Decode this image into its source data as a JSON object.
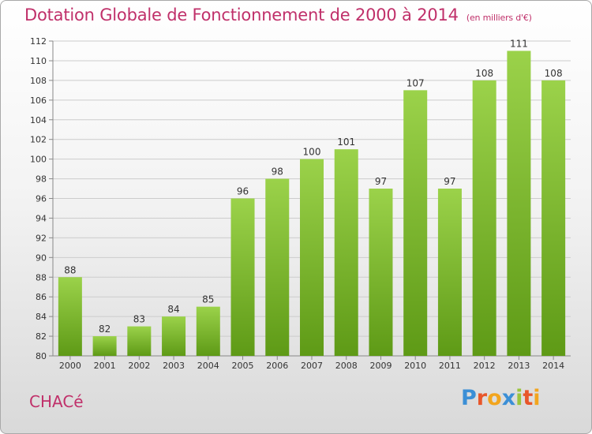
{
  "header": {
    "title": "Dotation Globale de Fonctionnement de 2000 à 2014",
    "subtitle": "(en milliers d'€)"
  },
  "footer": {
    "commune": "CHACé",
    "logo_text": "Proxiti",
    "logo_colors": [
      "#3b8fd6",
      "#e8562a",
      "#f2a51e",
      "#3b8fd6",
      "#9ac43c",
      "#e8562a",
      "#f2a51e"
    ]
  },
  "colors": {
    "bar_top": "#9bd24a",
    "bar_bottom": "#5e9a16",
    "title": "#c0306a",
    "grid": "#cccccc"
  },
  "chart_data": {
    "type": "bar",
    "categories": [
      "2000",
      "2001",
      "2002",
      "2003",
      "2004",
      "2005",
      "2006",
      "2007",
      "2008",
      "2009",
      "2010",
      "2011",
      "2012",
      "2013",
      "2014"
    ],
    "values": [
      88,
      82,
      83,
      84,
      85,
      96,
      98,
      100,
      101,
      97,
      107,
      97,
      108,
      111,
      108
    ],
    "ylim": [
      80,
      112
    ],
    "yticks": [
      80,
      82,
      84,
      86,
      88,
      90,
      92,
      94,
      96,
      98,
      100,
      102,
      104,
      106,
      108,
      110,
      112
    ],
    "grid": true,
    "legend": "none"
  }
}
